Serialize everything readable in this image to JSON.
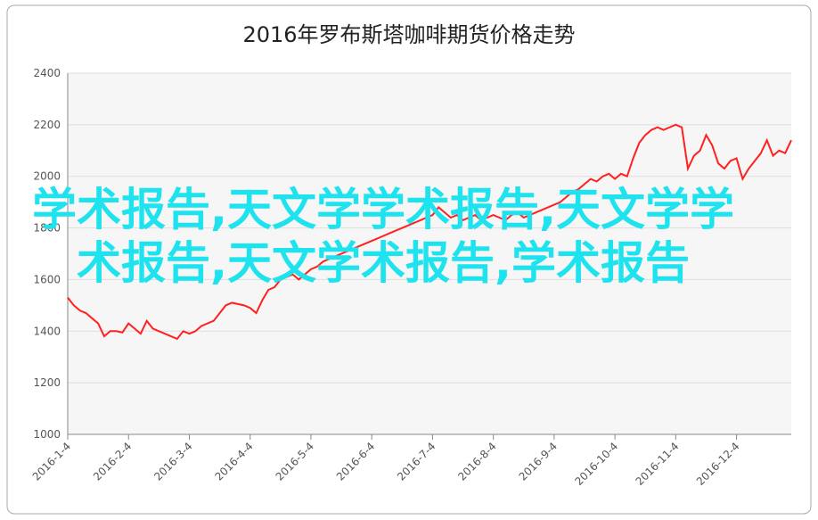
{
  "chart_data": {
    "type": "line",
    "title": "2016年罗布斯塔咖啡期货价格走势",
    "watermark": "学术报告,天文学学术报告,天文学学术报告,天文学术报告,学术报告",
    "categories": [
      "2016-1-4",
      null,
      null,
      null,
      null,
      null,
      null,
      null,
      null,
      null,
      "2016-2-4",
      null,
      null,
      null,
      null,
      null,
      null,
      null,
      null,
      null,
      "2016-3-4",
      null,
      null,
      null,
      null,
      null,
      null,
      null,
      null,
      null,
      "2016-4-4",
      null,
      null,
      null,
      null,
      null,
      null,
      null,
      null,
      null,
      "2016-5-4",
      null,
      null,
      null,
      null,
      null,
      null,
      null,
      null,
      null,
      "2016-6-4",
      null,
      null,
      null,
      null,
      null,
      null,
      null,
      null,
      null,
      "2016-7-4",
      null,
      null,
      null,
      null,
      null,
      null,
      null,
      null,
      null,
      "2016-8-4",
      null,
      null,
      null,
      null,
      null,
      null,
      null,
      null,
      null,
      "2016-9-4",
      null,
      null,
      null,
      null,
      null,
      null,
      null,
      null,
      null,
      "2016-10-4",
      null,
      null,
      null,
      null,
      null,
      null,
      null,
      null,
      null,
      "2016-11-4",
      null,
      null,
      null,
      null,
      null,
      null,
      null,
      null,
      null,
      "2016-12-4",
      null,
      null,
      null,
      null,
      null,
      null,
      null,
      null,
      null
    ],
    "series": [
      {
        "color": "#ff2020",
        "values": [
          1530,
          1500,
          1480,
          1470,
          1450,
          1430,
          1380,
          1400,
          1400,
          1395,
          1430,
          1410,
          1390,
          1440,
          1410,
          1400,
          1390,
          1380,
          1370,
          1400,
          1390,
          1400,
          1420,
          1430,
          1440,
          1470,
          1500,
          1510,
          1505,
          1500,
          1490,
          1470,
          1520,
          1560,
          1570,
          1600,
          1610,
          1620,
          1600,
          1620,
          1640,
          1650,
          1670,
          1680,
          1690,
          1700,
          1710,
          1720,
          1730,
          1740,
          1750,
          1760,
          1770,
          1780,
          1790,
          1800,
          1810,
          1820,
          1830,
          1840,
          1850,
          1880,
          1860,
          1840,
          1850,
          1830,
          1840,
          1850,
          1830,
          1840,
          1850,
          1840,
          1830,
          1850,
          1860,
          1840,
          1850,
          1860,
          1870,
          1880,
          1890,
          1900,
          1920,
          1940,
          1950,
          1970,
          1990,
          1980,
          2000,
          2010,
          1990,
          2010,
          2000,
          2070,
          2130,
          2160,
          2180,
          2190,
          2180,
          2190,
          2200,
          2190,
          2030,
          2080,
          2100,
          2160,
          2120,
          2050,
          2030,
          2060,
          2070,
          1990,
          2030,
          2060,
          2090,
          2140,
          2080,
          2100,
          2090,
          2140
        ]
      }
    ],
    "ylim": [
      1000,
      2400
    ],
    "yticks": [
      1000,
      1200,
      1400,
      1600,
      1800,
      2000,
      2200,
      2400
    ],
    "grid": true
  }
}
